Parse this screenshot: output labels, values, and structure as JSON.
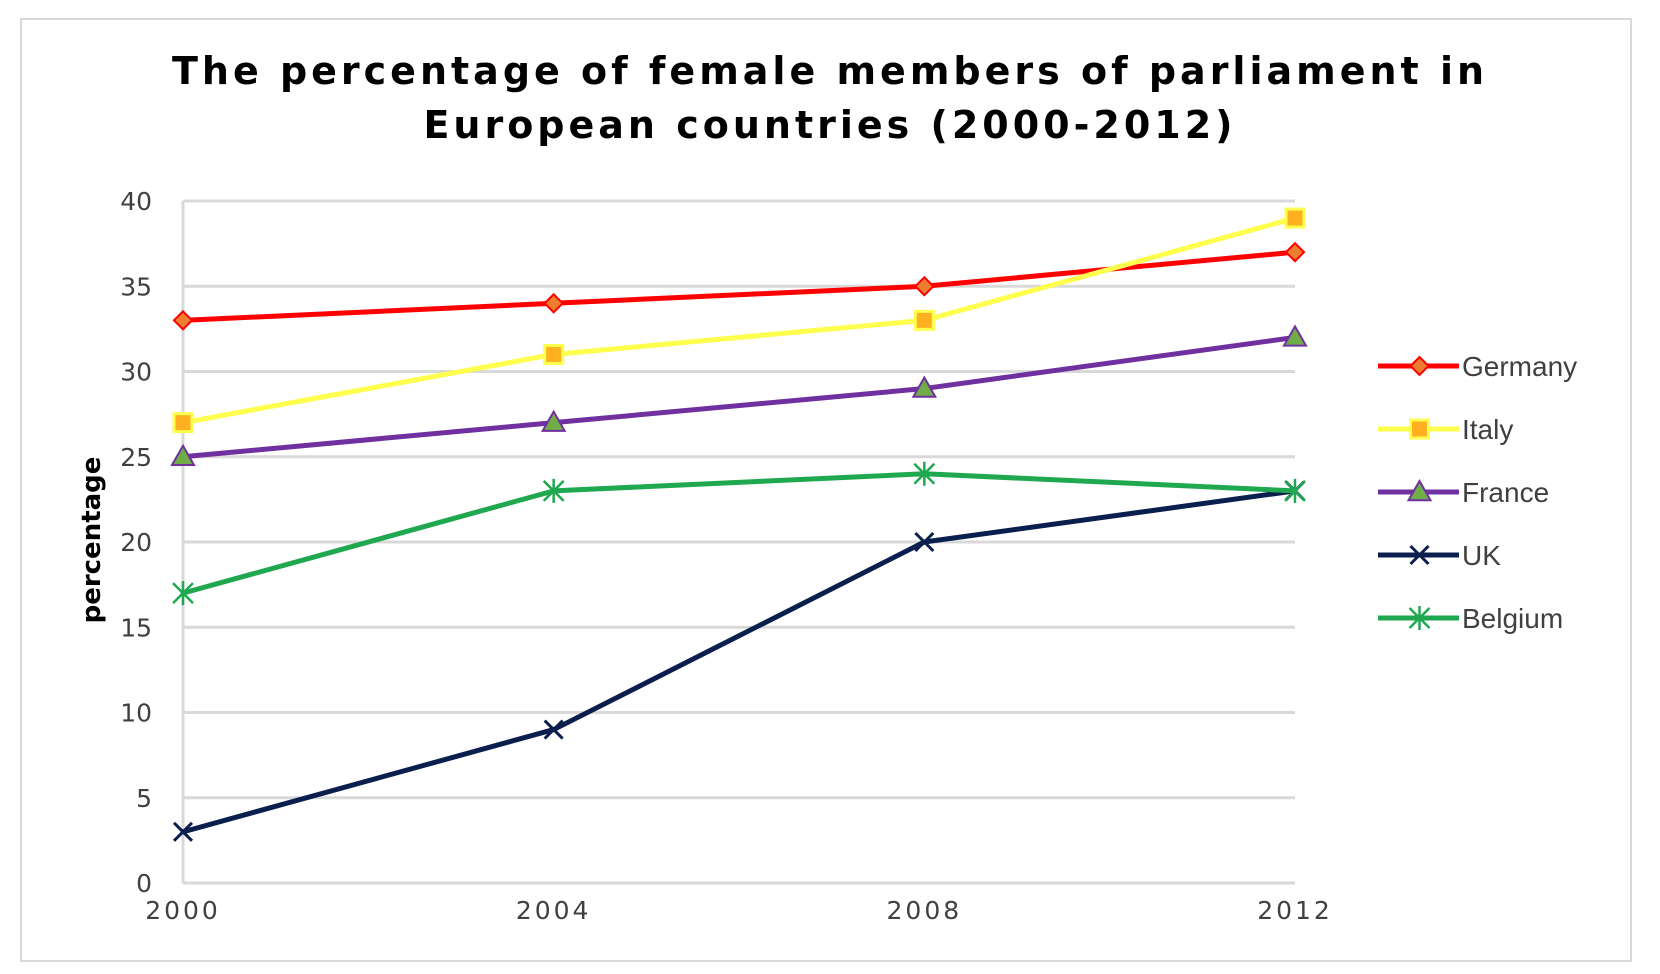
{
  "chart_data": {
    "type": "line",
    "title_lines": [
      "The percentage of female members of parliament in",
      "European countries (2000-2012)"
    ],
    "xlabel": "",
    "ylabel": "percentage",
    "x": [
      "2000",
      "2004",
      "2008",
      "2012"
    ],
    "ylim": [
      0,
      40
    ],
    "yticks": [
      "0",
      "5",
      "10",
      "15",
      "20",
      "25",
      "30",
      "35",
      "40"
    ],
    "grid": true,
    "legend_position": "right",
    "series": [
      {
        "name": "Germany",
        "values": [
          33,
          34,
          35,
          37
        ],
        "color": "#ff0000",
        "marker": "diamond",
        "marker_fill": "#ed7d31"
      },
      {
        "name": "Italy",
        "values": [
          27,
          31,
          33,
          39
        ],
        "color": "#ffff4d",
        "marker": "square",
        "marker_fill": "#ffb020"
      },
      {
        "name": "France",
        "values": [
          25,
          27,
          29,
          32
        ],
        "color": "#7030a0",
        "marker": "triangle",
        "marker_fill": "#70ad47"
      },
      {
        "name": "UK",
        "values": [
          3,
          9,
          20,
          23
        ],
        "color": "#0b1f4e",
        "marker": "x",
        "marker_fill": "#0b1f4e"
      },
      {
        "name": "Belgium",
        "values": [
          17,
          23,
          24,
          23
        ],
        "color": "#1fa84f",
        "marker": "star",
        "marker_fill": "#1fa84f"
      }
    ]
  }
}
